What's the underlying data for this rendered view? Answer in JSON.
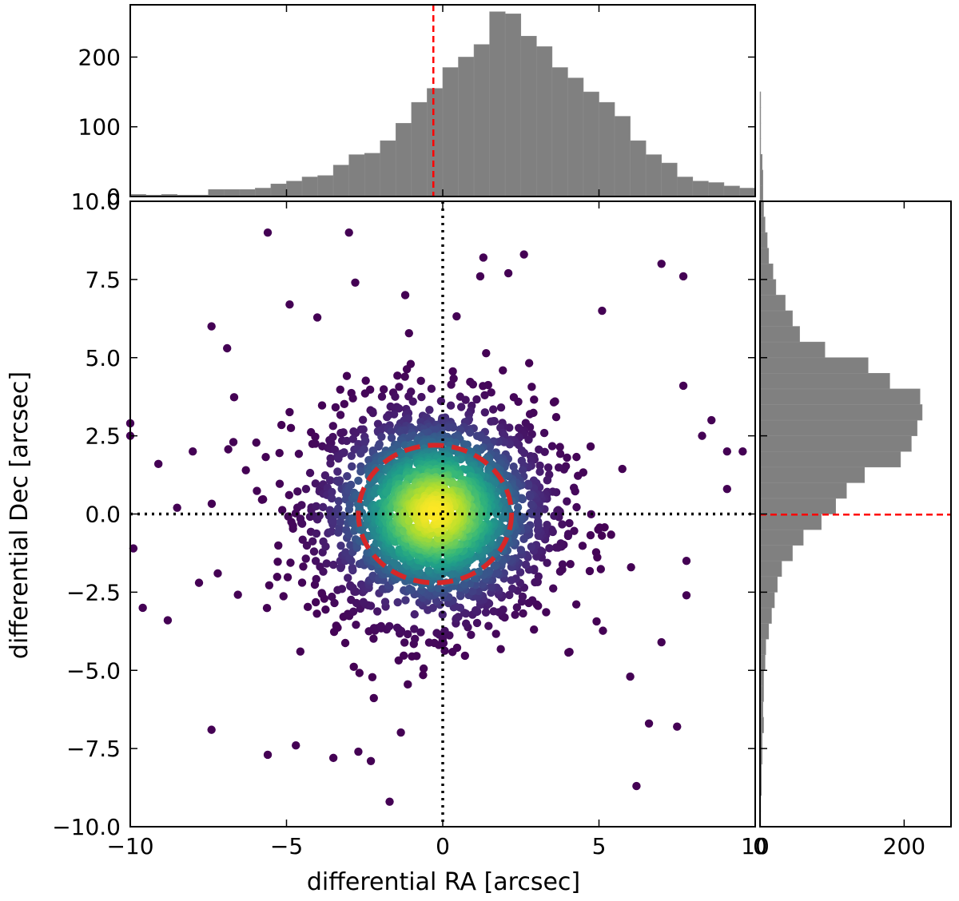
{
  "chart_data": [
    {
      "panel": "main-scatter",
      "type": "scatter",
      "xlabel": "differential RA [arcsec]",
      "ylabel": "differential Dec [arcsec]",
      "xlim": [
        -10,
        10
      ],
      "ylim": [
        -10,
        10
      ],
      "xticks": [
        -10,
        -5,
        0,
        5,
        10
      ],
      "xtick_labels": [
        "−10",
        "−5",
        "0",
        "5",
        "10"
      ],
      "yticks": [
        -10,
        -7.5,
        -5,
        -2.5,
        0,
        2.5,
        5,
        7.5,
        10
      ],
      "ytick_labels": [
        "−10.0",
        "−7.5",
        "−5.0",
        "−2.5",
        "0.0",
        "2.5",
        "5.0",
        "7.5",
        "10.0"
      ],
      "grid": false,
      "colormap": "viridis (point density)",
      "reference_lines": {
        "x": 0,
        "y": 0,
        "style": "dotted",
        "color": "#000000"
      },
      "ellipse": {
        "center": [
          -0.25,
          0
        ],
        "semi_axis_x": 2.45,
        "semi_axis_y": 2.2,
        "color": "#d62728",
        "style": "dashed"
      },
      "distribution": {
        "n_points": 2300,
        "sigma_x": 1.9,
        "sigma_y": 1.75,
        "mean_x": -0.25,
        "mean_y": 0.05
      },
      "outliers": [
        [
          -10,
          2.9
        ],
        [
          -10,
          2.5
        ],
        [
          -9.9,
          -1.1
        ],
        [
          -9.6,
          -3.0
        ],
        [
          -9.1,
          1.6
        ],
        [
          -8.8,
          -3.4
        ],
        [
          -8.5,
          0.2
        ],
        [
          -7.8,
          -2.2
        ],
        [
          -7.4,
          6.0
        ],
        [
          -7.4,
          -6.9
        ],
        [
          -6.9,
          5.3
        ],
        [
          -5.6,
          9.0
        ],
        [
          -5.6,
          -7.7
        ],
        [
          -4.7,
          -7.4
        ],
        [
          -3.5,
          -7.8
        ],
        [
          -3.0,
          9.0
        ],
        [
          -2.8,
          7.4
        ],
        [
          -2.7,
          -7.6
        ],
        [
          -2.3,
          -7.9
        ],
        [
          -1.7,
          -9.2
        ],
        [
          -1.2,
          7.0
        ],
        [
          1.3,
          8.2
        ],
        [
          2.6,
          8.3
        ],
        [
          1.2,
          7.6
        ],
        [
          2.1,
          7.7
        ],
        [
          6.6,
          -6.7
        ],
        [
          7.0,
          8.0
        ],
        [
          7.7,
          7.6
        ],
        [
          7.5,
          -6.8
        ],
        [
          6.2,
          -8.7
        ],
        [
          7.7,
          4.1
        ],
        [
          8.3,
          2.5
        ],
        [
          9.1,
          2.0
        ],
        [
          9.6,
          2.0
        ],
        [
          9.1,
          0.8
        ],
        [
          7.8,
          -1.5
        ],
        [
          7.8,
          -2.6
        ],
        [
          7.0,
          -4.1
        ],
        [
          6.0,
          -5.2
        ],
        [
          5.1,
          6.5
        ],
        [
          -4.9,
          6.7
        ],
        [
          -6.3,
          1.4
        ],
        [
          -7.2,
          -1.9
        ],
        [
          -6.7,
          2.3
        ],
        [
          8.6,
          3.0
        ],
        [
          -8.0,
          2.0
        ]
      ]
    },
    {
      "panel": "top-histogram",
      "type": "bar",
      "description_of_axis": "differential RA",
      "bin_edges_start": -10,
      "bin_width": 0.5,
      "values": [
        3,
        2,
        3,
        2,
        2,
        10,
        10,
        10,
        12,
        18,
        22,
        28,
        30,
        45,
        60,
        62,
        80,
        105,
        135,
        155,
        185,
        200,
        218,
        265,
        262,
        230,
        215,
        185,
        170,
        150,
        135,
        115,
        80,
        60,
        48,
        28,
        22,
        20,
        15,
        12,
        14,
        15,
        10,
        8,
        6,
        5,
        5,
        3,
        1,
        1,
        1,
        1,
        1,
        1
      ],
      "yticks": [
        0,
        100,
        200
      ],
      "ylim": [
        0,
        275
      ],
      "mean_line": {
        "value": -0.3,
        "color": "#ff0000",
        "style": "dashed"
      },
      "bar_color": "#808080"
    },
    {
      "panel": "right-histogram",
      "type": "bar",
      "orientation": "horizontal",
      "description_of_axis": "differential Dec",
      "bin_edges_start": -10,
      "bin_width": 0.5,
      "values": [
        1,
        1,
        2,
        2,
        3,
        3,
        5,
        4,
        5,
        5,
        7,
        8,
        12,
        16,
        20,
        24,
        30,
        45,
        60,
        85,
        105,
        120,
        145,
        195,
        210,
        218,
        225,
        222,
        180,
        150,
        90,
        55,
        45,
        35,
        22,
        18,
        12,
        10,
        7,
        5,
        4,
        4,
        3,
        1,
        1,
        1,
        1,
        0
      ],
      "xticks": [
        0,
        200
      ],
      "xlim": [
        0,
        265
      ],
      "mean_line": {
        "value": -0.02,
        "color": "#ff0000",
        "style": "dashed"
      },
      "bar_color": "#808080"
    }
  ]
}
